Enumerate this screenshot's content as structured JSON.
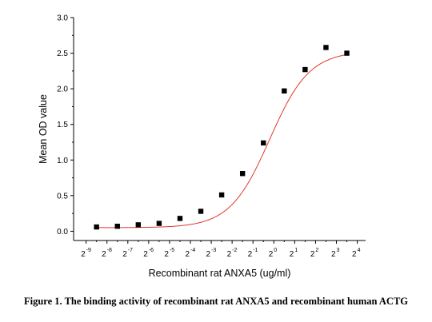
{
  "chart_data": {
    "type": "scatter",
    "title": "",
    "xlabel": "Recombinant rat ANXA5 (ug/ml)",
    "ylabel": "Mean OD value",
    "x_scale": "log2",
    "x_tick_base": "2",
    "x_tick_exponents": [
      "-9",
      "-8",
      "-7",
      "-6",
      "-5",
      "-4",
      "-3",
      "-2",
      "-1",
      "0",
      "1",
      "2",
      "3",
      "4"
    ],
    "y_ticks": [
      "0.0",
      "0.5",
      "1.0",
      "1.5",
      "2.0",
      "2.5",
      "3.0"
    ],
    "xlim_log2": [
      -9.6,
      4.4
    ],
    "ylim": [
      -0.13,
      3.0
    ],
    "grid": false,
    "series": [
      {
        "marker": "square",
        "color": "#000000",
        "points": [
          {
            "x_log2": -8.5,
            "y": 0.06
          },
          {
            "x_log2": -7.5,
            "y": 0.07
          },
          {
            "x_log2": -6.5,
            "y": 0.09
          },
          {
            "x_log2": -5.5,
            "y": 0.11
          },
          {
            "x_log2": -4.5,
            "y": 0.18
          },
          {
            "x_log2": -3.5,
            "y": 0.28
          },
          {
            "x_log2": -2.5,
            "y": 0.51
          },
          {
            "x_log2": -1.5,
            "y": 0.81
          },
          {
            "x_log2": -0.5,
            "y": 1.24
          },
          {
            "x_log2": 0.5,
            "y": 1.97
          },
          {
            "x_log2": 1.5,
            "y": 2.27
          },
          {
            "x_log2": 2.5,
            "y": 2.58
          },
          {
            "x_log2": 3.5,
            "y": 2.5
          }
        ]
      }
    ],
    "fit_curve": {
      "type": "sigmoid",
      "color": "#e0392b",
      "bottom": 0.05,
      "top": 2.53,
      "center_log2": -0.2,
      "slope": 1.05
    }
  },
  "caption": "Figure 1. The binding activity of recombinant rat ANXA5 and recombinant human ACTG"
}
